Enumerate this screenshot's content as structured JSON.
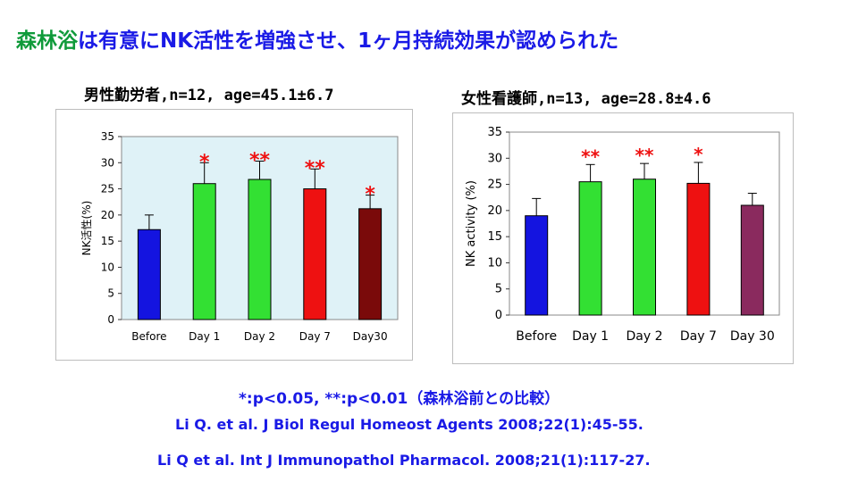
{
  "slide": {
    "title_highlight": "森林浴",
    "title_rest": "は有意にNK活性を増強させ、1ヶ月持続効果が認められた",
    "significance_note": "*:p<0.05, **:p<0.01（森林浴前との比較）",
    "references": [
      "Li Q. et al. J Biol Regul Homeost Agents 2008;22(1):45-55.",
      "Li Q et al. Int J Immunopathol Pharmacol. 2008;21(1):117-27."
    ]
  },
  "chart_data": [
    {
      "type": "bar",
      "title": "男性勤労者,n=12, age=45.1±6.7",
      "ylabel": "NK活性(%)",
      "xlabel": "",
      "categories": [
        "Before",
        "Day 1",
        "Day 2",
        "Day 7",
        "Day30"
      ],
      "values": [
        17.2,
        26.0,
        26.8,
        25.0,
        21.2
      ],
      "errors": [
        2.8,
        4.0,
        3.5,
        3.8,
        2.6
      ],
      "significance": [
        "",
        "*",
        "**",
        "**",
        "*"
      ],
      "bar_colors": [
        "#1414e0",
        "#33e033",
        "#33e033",
        "#ee1111",
        "#7a0a0a"
      ],
      "yticks": [
        "0",
        "5",
        "10",
        "15",
        "20",
        "25",
        "30",
        "35"
      ],
      "ylim": [
        0,
        35
      ],
      "plot_bg": "#dff2f7",
      "grid": false
    },
    {
      "type": "bar",
      "title": "女性看護師,n=13, age=28.8±4.6",
      "ylabel": "NK activity (%)",
      "xlabel": "",
      "categories": [
        "Before",
        "Day 1",
        "Day 2",
        "Day 7",
        "Day 30"
      ],
      "values": [
        19.0,
        25.5,
        26.0,
        25.2,
        21.0
      ],
      "errors": [
        3.3,
        3.3,
        3.0,
        4.0,
        2.3
      ],
      "significance": [
        "",
        "**",
        "**",
        "*",
        ""
      ],
      "bar_colors": [
        "#1414e0",
        "#33e033",
        "#33e033",
        "#ee1111",
        "#8a2a5e"
      ],
      "yticks": [
        "0",
        "5",
        "10",
        "15",
        "20",
        "25",
        "30",
        "35"
      ],
      "ylim": [
        0,
        35
      ],
      "plot_bg": "#ffffff",
      "grid": false
    }
  ]
}
